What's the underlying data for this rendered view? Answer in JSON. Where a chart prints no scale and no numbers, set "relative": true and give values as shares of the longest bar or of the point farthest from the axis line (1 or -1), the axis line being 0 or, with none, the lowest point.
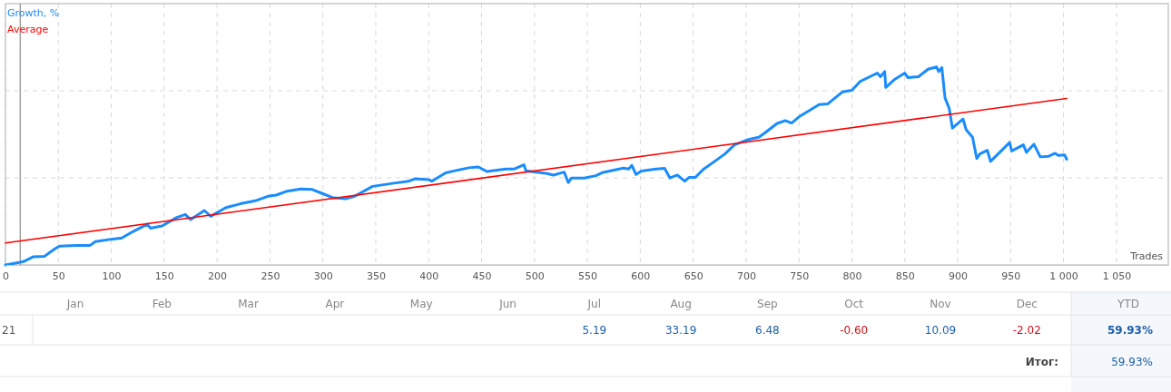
{
  "chart_data": {
    "type": "line",
    "relative": true,
    "xlabel": "Trades",
    "legend": "top left",
    "grid": true,
    "marker": "none",
    "line_style": "solid",
    "xlim": [
      0,
      1099
    ],
    "xticks": [
      0,
      50,
      100,
      150,
      200,
      250,
      300,
      350,
      400,
      450,
      500,
      550,
      600,
      650,
      700,
      750,
      800,
      850,
      900,
      950,
      {
        "value": 1000,
        "label": "1 000"
      },
      {
        "value": 1050,
        "label": "1 050"
      }
    ],
    "ref_lines": [
      {
        "axis": "x",
        "value": 14,
        "color": "#a0a0a0"
      }
    ],
    "series": [
      {
        "name": "Growth, %",
        "color": "#1a8cff",
        "x": [
          0,
          14,
          17,
          26,
          37,
          46,
          51,
          68,
          80,
          85,
          100,
          110,
          120,
          134,
          137,
          148,
          162,
          170,
          175,
          188,
          194,
          208,
          222,
          236,
          248,
          256,
          265,
          279,
          290,
          299,
          310,
          322,
          330,
          347,
          367,
          381,
          387,
          400,
          403,
          416,
          424,
          438,
          447,
          455,
          473,
          481,
          490,
          492,
          512,
          518,
          528,
          532,
          535,
          547,
          558,
          564,
          584,
          589,
          592,
          596,
          601,
          615,
          623,
          628,
          635,
          642,
          646,
          652,
          660,
          672,
          680,
          689,
          700,
          706,
          712,
          718,
          729,
          737,
          743,
          751,
          769,
          777,
          791,
          800,
          808,
          817,
          824,
          827,
          831,
          832,
          840,
          850,
          853,
          863,
          872,
          880,
          882,
          885,
          888,
          892,
          895,
          905,
          908,
          914,
          918,
          921,
          928,
          931,
          944,
          949,
          951,
          962,
          965,
          972,
          978,
          986,
          992,
          995,
          1001,
          1003
        ],
        "values": [
          0,
          0.014,
          0.017,
          0.041,
          0.044,
          0.079,
          0.095,
          0.099,
          0.099,
          0.118,
          0.13,
          0.136,
          0.167,
          0.206,
          0.186,
          0.197,
          0.24,
          0.255,
          0.229,
          0.275,
          0.246,
          0.289,
          0.309,
          0.324,
          0.347,
          0.353,
          0.371,
          0.384,
          0.381,
          0.362,
          0.339,
          0.335,
          0.347,
          0.397,
          0.413,
          0.423,
          0.435,
          0.431,
          0.423,
          0.465,
          0.475,
          0.491,
          0.495,
          0.472,
          0.485,
          0.485,
          0.506,
          0.475,
          0.462,
          0.454,
          0.469,
          0.416,
          0.439,
          0.439,
          0.451,
          0.466,
          0.489,
          0.485,
          0.503,
          0.457,
          0.474,
          0.485,
          0.488,
          0.439,
          0.454,
          0.423,
          0.442,
          0.442,
          0.485,
          0.53,
          0.561,
          0.607,
          0.63,
          0.638,
          0.645,
          0.668,
          0.714,
          0.729,
          0.717,
          0.752,
          0.81,
          0.813,
          0.874,
          0.882,
          0.928,
          0.951,
          0.969,
          0.951,
          0.977,
          0.897,
          0.936,
          0.969,
          0.946,
          0.951,
          0.989,
          1,
          0.977,
          0.997,
          0.844,
          0.79,
          0.691,
          0.737,
          0.683,
          0.645,
          0.538,
          0.561,
          0.579,
          0.523,
          0.592,
          0.619,
          0.576,
          0.607,
          0.569,
          0.61,
          0.546,
          0.549,
          0.564,
          0.553,
          0.556,
          0.534
        ]
      },
      {
        "name": "Average",
        "color": "#ff0000",
        "type": "line",
        "x": [
          0,
          1003
        ],
        "values": [
          0.111,
          0.841
        ]
      }
    ],
    "annotations": [
      "Jan",
      "Feb",
      "Mar",
      "Apr",
      "May",
      "Jun",
      "Jul",
      "Aug",
      "Sep",
      "Oct",
      "Nov",
      "Dec",
      "YTD",
      "21",
      "5.19",
      "33.19",
      "6.48",
      "-0.60",
      "10.09",
      "-2.02",
      "59.93%",
      "Итог:",
      "59.93%"
    ]
  }
}
